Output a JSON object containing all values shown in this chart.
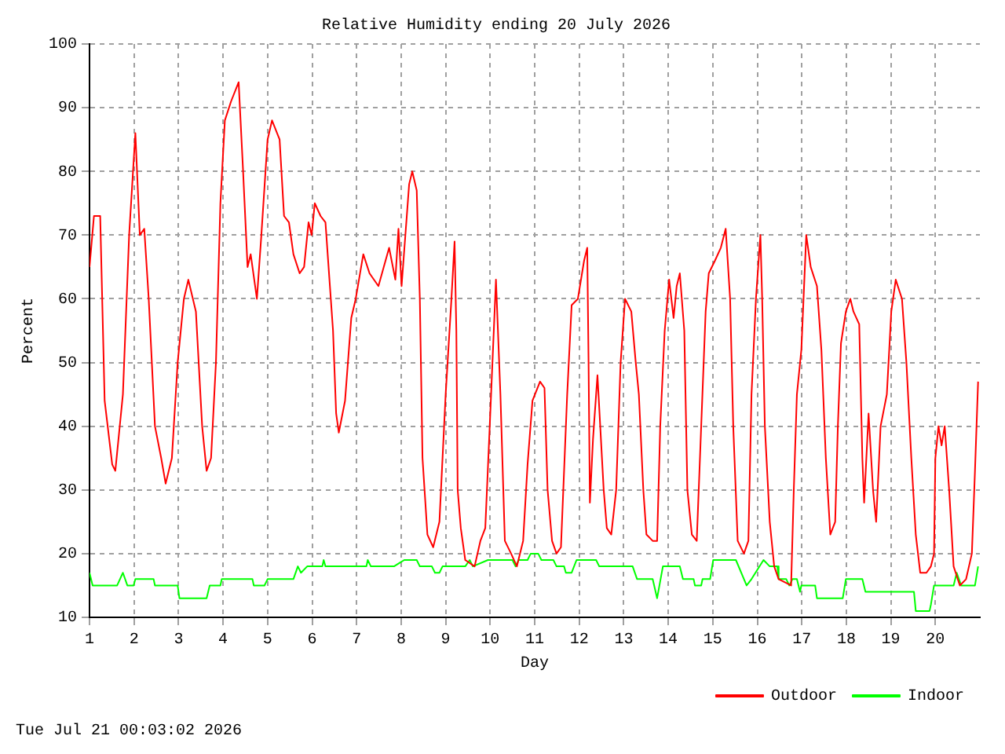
{
  "chart_data": {
    "type": "line",
    "title": "Relative Humidity ending 20 July 2026",
    "xlabel": "Day",
    "ylabel": "Percent",
    "annotations": [
      "Tue Jul 21 00:03:02 2026"
    ],
    "xlim": [
      1,
      21
    ],
    "xticks": [
      1,
      2,
      3,
      4,
      5,
      6,
      7,
      8,
      9,
      10,
      11,
      12,
      13,
      14,
      15,
      16,
      17,
      18,
      19,
      20
    ],
    "ylim": [
      10,
      100
    ],
    "yticks": [
      10,
      20,
      30,
      40,
      50,
      60,
      70,
      80,
      90,
      100
    ],
    "grid": true,
    "legend": "bottom right",
    "marker": "none",
    "line_style": "solid",
    "series": [
      {
        "name": "Outdoor",
        "color": "#ff0000",
        "x": [
          1.0,
          1.1,
          1.24,
          1.34,
          1.51,
          1.58,
          1.75,
          1.89,
          2.03,
          2.13,
          2.23,
          2.33,
          2.47,
          2.61,
          2.71,
          2.85,
          2.98,
          3.12,
          3.22,
          3.39,
          3.53,
          3.63,
          3.73,
          3.84,
          3.94,
          4.04,
          4.18,
          4.35,
          4.45,
          4.55,
          4.62,
          4.76,
          4.86,
          5.0,
          5.1,
          5.27,
          5.37,
          5.48,
          5.58,
          5.72,
          5.82,
          5.92,
          5.99,
          6.06,
          6.19,
          6.3,
          6.4,
          6.47,
          6.54,
          6.6,
          6.74,
          6.88,
          6.98,
          7.15,
          7.29,
          7.49,
          7.73,
          7.87,
          7.94,
          8.01,
          8.18,
          8.25,
          8.35,
          8.42,
          8.48,
          8.59,
          8.72,
          8.86,
          9.0,
          9.13,
          9.2,
          9.24,
          9.27,
          9.34,
          9.44,
          9.65,
          9.78,
          9.89,
          9.99,
          10.13,
          10.23,
          10.33,
          10.47,
          10.6,
          10.74,
          10.84,
          10.95,
          11.12,
          11.22,
          11.29,
          11.39,
          11.49,
          11.59,
          11.73,
          11.83,
          11.97,
          12.11,
          12.18,
          12.21,
          12.24,
          12.31,
          12.41,
          12.55,
          12.62,
          12.72,
          12.83,
          12.93,
          13.03,
          13.17,
          13.27,
          13.34,
          13.44,
          13.51,
          13.65,
          13.75,
          13.82,
          13.92,
          14.02,
          14.12,
          14.19,
          14.26,
          14.36,
          14.43,
          14.53,
          14.64,
          14.74,
          14.84,
          14.91,
          15.05,
          15.18,
          15.29,
          15.39,
          15.46,
          15.56,
          15.7,
          15.8,
          15.87,
          15.97,
          16.07,
          16.11,
          16.17,
          16.28,
          16.38,
          16.48,
          16.76,
          16.82,
          16.89,
          16.99,
          17.1,
          17.2,
          17.34,
          17.44,
          17.54,
          17.64,
          17.75,
          17.81,
          17.88,
          17.99,
          18.09,
          18.16,
          18.29,
          18.36,
          18.4,
          18.5,
          18.6,
          18.67,
          18.77,
          18.91,
          19.01,
          19.11,
          19.25,
          19.35,
          19.46,
          19.56,
          19.66,
          19.8,
          19.9,
          19.97,
          20.0,
          20.07,
          20.14,
          20.21,
          20.31,
          20.41,
          20.55,
          20.69,
          20.82,
          20.89,
          20.96
        ],
        "values": [
          65,
          73,
          73,
          44,
          34,
          33,
          45,
          70,
          86,
          70,
          71,
          60,
          40,
          35,
          31,
          35,
          50,
          60,
          63,
          58,
          40,
          33,
          35,
          50,
          75,
          88,
          91,
          94,
          80,
          65,
          67,
          60,
          70,
          85,
          88,
          85,
          73,
          72,
          67,
          64,
          65,
          72,
          70,
          75,
          73,
          72,
          62,
          55,
          42,
          39,
          44,
          57,
          60,
          67,
          64,
          62,
          68,
          63,
          71,
          62,
          78,
          80,
          77,
          60,
          35,
          23,
          21,
          25,
          45,
          60,
          69,
          55,
          30,
          24,
          19,
          18,
          22,
          24,
          40,
          63,
          45,
          22,
          20,
          18,
          22,
          34,
          44,
          47,
          46,
          30,
          22,
          20,
          21,
          45,
          59,
          60,
          66,
          68,
          50,
          28,
          38,
          48,
          30,
          24,
          23,
          30,
          50,
          60,
          58,
          50,
          45,
          30,
          23,
          22,
          22,
          40,
          55,
          63,
          57,
          62,
          64,
          55,
          30,
          23,
          22,
          40,
          58,
          64,
          66,
          68,
          71,
          60,
          40,
          22,
          20,
          22,
          45,
          60,
          70,
          60,
          40,
          25,
          18,
          16,
          15,
          30,
          45,
          52,
          70,
          65,
          62,
          52,
          35,
          23,
          25,
          40,
          53,
          58,
          60,
          58,
          56,
          35,
          28,
          42,
          30,
          25,
          40,
          45,
          58,
          63,
          60,
          50,
          35,
          23,
          17,
          17,
          18,
          20,
          35,
          40,
          37,
          40,
          30,
          18,
          15,
          16,
          20,
          33,
          47
        ]
      },
      {
        "name": "Indoor",
        "color": "#00ff00",
        "x": [
          1.0,
          1.07,
          1.62,
          1.75,
          1.85,
          1.99,
          2.03,
          2.44,
          2.47,
          2.98,
          3.02,
          3.63,
          3.7,
          3.94,
          3.97,
          4.66,
          4.69,
          4.93,
          5.0,
          5.58,
          5.68,
          5.75,
          5.89,
          6.23,
          6.26,
          6.3,
          7.22,
          7.25,
          7.32,
          7.84,
          8.07,
          8.35,
          8.42,
          8.69,
          8.76,
          8.86,
          8.93,
          9.44,
          9.54,
          9.61,
          9.95,
          10.5,
          10.57,
          10.64,
          10.84,
          10.91,
          11.08,
          11.15,
          11.42,
          11.49,
          11.66,
          11.7,
          11.83,
          11.94,
          12.38,
          12.45,
          13.2,
          13.3,
          13.65,
          13.75,
          13.88,
          14.26,
          14.33,
          14.57,
          14.6,
          14.74,
          14.77,
          14.94,
          15.01,
          15.52,
          15.76,
          15.87,
          16.14,
          16.28,
          16.45,
          16.48,
          16.65,
          16.72,
          16.79,
          16.89,
          16.96,
          16.99,
          17.3,
          17.34,
          17.92,
          17.99,
          18.36,
          18.43,
          19.52,
          19.56,
          19.87,
          19.9,
          19.97,
          20.41,
          20.48,
          20.58,
          20.89,
          20.96
        ],
        "values": [
          17,
          15,
          15,
          17,
          15,
          15,
          16,
          16,
          15,
          15,
          13,
          13,
          15,
          15,
          16,
          16,
          15,
          15,
          16,
          16,
          18,
          17,
          18,
          18,
          19,
          18,
          18,
          19,
          18,
          18,
          19,
          19,
          18,
          18,
          17,
          17,
          18,
          18,
          19,
          18,
          19,
          19,
          18,
          19,
          19,
          20,
          20,
          19,
          19,
          18,
          18,
          17,
          17,
          19,
          19,
          18,
          18,
          16,
          16,
          13,
          18,
          18,
          16,
          16,
          15,
          15,
          16,
          16,
          19,
          19,
          15,
          16,
          19,
          18,
          18,
          16,
          16,
          15,
          16,
          16,
          14,
          15,
          15,
          13,
          13,
          16,
          16,
          14,
          14,
          11,
          11,
          12,
          15,
          15,
          17,
          15,
          15,
          18
        ]
      }
    ]
  }
}
